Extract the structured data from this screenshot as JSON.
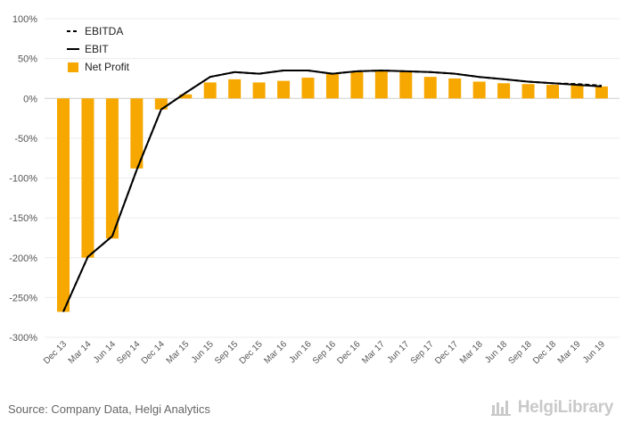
{
  "chart_data": {
    "type": "bar+line",
    "title": "",
    "xlabel": "",
    "ylabel": "",
    "ylim": [
      -300,
      100
    ],
    "ytick_values": [
      100,
      50,
      0,
      -50,
      -100,
      -150,
      -200,
      -250,
      -300
    ],
    "ytick_labels": [
      "100%",
      "50%",
      "0%",
      "-50%",
      "-100%",
      "-150%",
      "-200%",
      "-250%",
      "-300%"
    ],
    "categories": [
      "Dec 13",
      "Mar 14",
      "Jun 14",
      "Sep 14",
      "Dec 14",
      "Mar 15",
      "Jun 15",
      "Sep 15",
      "Dec 15",
      "Mar 16",
      "Jun 16",
      "Sep 16",
      "Dec 16",
      "Mar 17",
      "Jun 17",
      "Sep 17",
      "Dec 17",
      "Mar 18",
      "Jun 18",
      "Sep 18",
      "Dec 18",
      "Mar 19",
      "Jun 19"
    ],
    "series": [
      {
        "name": "EBITDA",
        "kind": "line",
        "style": "dashed",
        "color": "#000000",
        "values": [
          -268,
          -199,
          -173,
          -90,
          -14,
          7,
          27,
          33,
          31,
          35,
          35,
          31,
          34,
          35,
          34,
          33,
          31,
          27,
          24,
          21,
          19,
          18,
          16
        ]
      },
      {
        "name": "EBIT",
        "kind": "line",
        "style": "solid",
        "color": "#000000",
        "values": [
          -268,
          -199,
          -173,
          -90,
          -14,
          7,
          27,
          33,
          31,
          35,
          35,
          31,
          34,
          35,
          34,
          33,
          31,
          27,
          24,
          21,
          19,
          17,
          15
        ]
      },
      {
        "name": "Net Profit",
        "kind": "bar",
        "color": "#F7A800",
        "values": [
          -268,
          -200,
          -176,
          -88,
          -14,
          5,
          20,
          24,
          20,
          22,
          26,
          32,
          33,
          34,
          33,
          27,
          25,
          21,
          19,
          18,
          17,
          17,
          15
        ]
      }
    ],
    "legend_position": "top-left"
  },
  "footer": {
    "source": "Source: Company Data, Helgi Analytics",
    "brand": "HelgiLibrary"
  }
}
